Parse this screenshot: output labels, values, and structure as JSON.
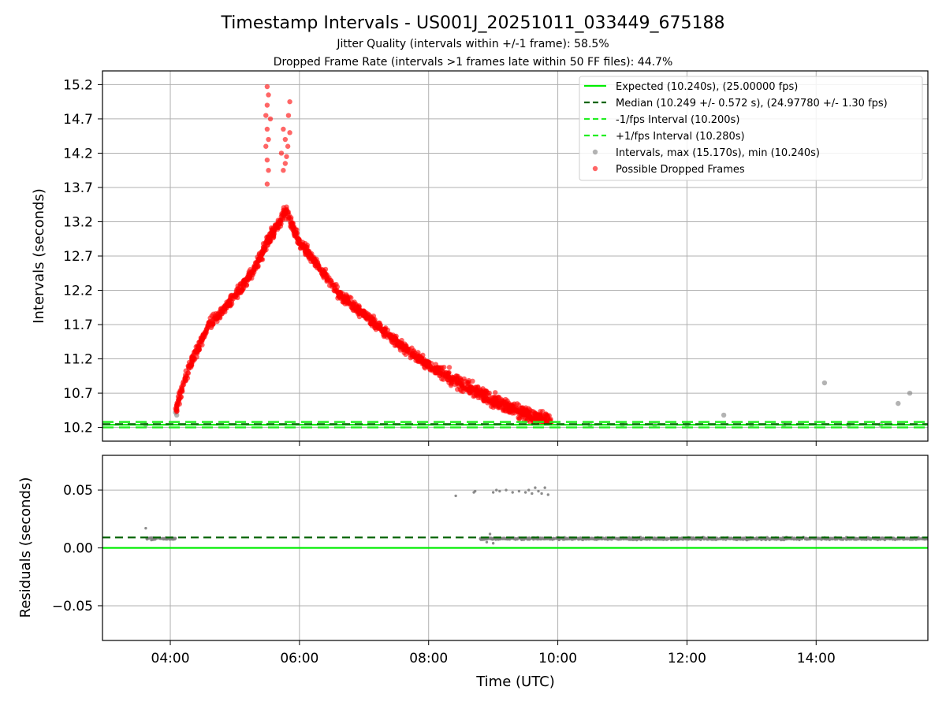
{
  "chart_data": [
    {
      "type": "scatter",
      "title": "Timestamp Intervals - US001J_20251011_033449_675188",
      "subtitles": [
        "Jitter Quality (intervals within +/-1 frame): 58.5%",
        "Dropped Frame Rate (intervals >1 frames late within 50 FF files): 44.7%"
      ],
      "xlabel": "",
      "ylabel": "Intervals (seconds)",
      "x_unit": "hours (UTC)",
      "xlim": [
        2.95,
        15.73
      ],
      "ylim": [
        10.0,
        15.4
      ],
      "yticks": [
        10.2,
        10.7,
        11.2,
        11.7,
        12.2,
        12.7,
        13.2,
        13.7,
        14.2,
        14.7,
        15.2
      ],
      "yticklabels": [
        "10.2",
        "10.7",
        "11.2",
        "11.7",
        "12.2",
        "12.7",
        "13.2",
        "13.7",
        "14.2",
        "14.7",
        "15.2"
      ],
      "xticks": [
        4,
        6,
        8,
        10,
        12,
        14
      ],
      "grid": true,
      "legend_position": "top-right",
      "colors": {
        "expected": "#00ee00",
        "median": "#006400",
        "band": "#22ee22",
        "intervals": "#808080",
        "dropped": "#ff0000"
      },
      "legend": [
        {
          "label": "Expected (10.240s), (25.00000 fps)",
          "style": "solid-line",
          "color": "#00ee00"
        },
        {
          "label": "Median (10.249 +/- 0.572 s), (24.97780 +/- 1.30 fps)",
          "style": "dashed-line",
          "color": "#006400"
        },
        {
          "label": "-1/fps Interval (10.200s)",
          "style": "dashed-line",
          "color": "#22ee22"
        },
        {
          "label": "+1/fps Interval (10.280s)",
          "style": "dashed-line",
          "color": "#22ee22"
        },
        {
          "label": "Intervals, max (15.170s), min (10.240s)",
          "style": "marker",
          "color": "#808080"
        },
        {
          "label": "Possible Dropped Frames",
          "style": "marker",
          "color": "#ff0000"
        }
      ],
      "reference_lines": {
        "expected": 10.24,
        "median": 10.249,
        "minus_one_fps": 10.2,
        "plus_one_fps": 10.28
      },
      "series": [
        {
          "name": "Intervals, max (15.170s), min (10.240s)",
          "color": "#808080",
          "points": [
            [
              3.62,
              10.24
            ],
            [
              4.08,
              10.42
            ],
            [
              4.1,
              10.38
            ],
            [
              12.57,
              10.38
            ],
            [
              14.13,
              10.85
            ],
            [
              15.27,
              10.55
            ],
            [
              15.45,
              10.7
            ],
            [
              10.5,
              10.24
            ],
            [
              11.0,
              10.24
            ],
            [
              11.5,
              10.24
            ],
            [
              12.0,
              10.24
            ],
            [
              13.0,
              10.24
            ],
            [
              13.5,
              10.24
            ],
            [
              14.5,
              10.24
            ],
            [
              15.0,
              10.24
            ]
          ]
        },
        {
          "name": "Possible Dropped Frames",
          "color": "#ff0000",
          "trend": [
            [
              4.08,
              10.45
            ],
            [
              4.3,
              11.1
            ],
            [
              4.6,
              11.7
            ],
            [
              5.0,
              12.1
            ],
            [
              5.3,
              12.5
            ],
            [
              5.55,
              13.0
            ],
            [
              5.8,
              13.35
            ],
            [
              6.0,
              12.9
            ],
            [
              6.3,
              12.55
            ],
            [
              6.6,
              12.15
            ],
            [
              7.0,
              11.85
            ],
            [
              7.5,
              11.45
            ],
            [
              8.0,
              11.1
            ],
            [
              8.5,
              10.85
            ],
            [
              9.0,
              10.6
            ],
            [
              9.5,
              10.4
            ],
            [
              9.9,
              10.28
            ]
          ],
          "peak_points": [
            [
              5.5,
              15.17
            ],
            [
              5.52,
              15.05
            ],
            [
              5.5,
              14.9
            ],
            [
              5.48,
              14.75
            ],
            [
              5.55,
              14.7
            ],
            [
              5.5,
              14.55
            ],
            [
              5.52,
              14.4
            ],
            [
              5.48,
              14.3
            ],
            [
              5.5,
              14.1
            ],
            [
              5.52,
              13.95
            ],
            [
              5.5,
              13.75
            ],
            [
              5.75,
              14.55
            ],
            [
              5.78,
              14.4
            ],
            [
              5.72,
              14.2
            ],
            [
              5.8,
              14.15
            ],
            [
              5.75,
              13.95
            ],
            [
              5.85,
              14.95
            ],
            [
              5.83,
              14.75
            ],
            [
              5.85,
              14.5
            ],
            [
              5.82,
              14.3
            ],
            [
              5.78,
              14.05
            ]
          ]
        }
      ]
    },
    {
      "type": "scatter",
      "title": "",
      "xlabel": "Time (UTC)",
      "ylabel": "Residuals (seconds)",
      "x_unit": "hours (UTC)",
      "xlim": [
        2.95,
        15.73
      ],
      "ylim": [
        -0.08,
        0.08
      ],
      "yticks": [
        -0.05,
        0.0,
        0.05
      ],
      "yticklabels": [
        "−0.05",
        "0.00",
        "0.05"
      ],
      "xticks": [
        4,
        6,
        8,
        10,
        12,
        14
      ],
      "xticklabels": [
        "04:00",
        "06:00",
        "08:00",
        "10:00",
        "12:00",
        "14:00"
      ],
      "grid": true,
      "reference_lines": {
        "expected": 0.0,
        "median": 0.009
      },
      "series": [
        {
          "color": "#808080",
          "points": [
            [
              3.62,
              0.017
            ],
            [
              8.42,
              0.045
            ],
            [
              8.7,
              0.048
            ],
            [
              8.72,
              0.049
            ],
            [
              9.0,
              0.048
            ],
            [
              9.05,
              0.05
            ],
            [
              9.1,
              0.049
            ],
            [
              9.2,
              0.05
            ],
            [
              9.3,
              0.048
            ],
            [
              9.4,
              0.049
            ],
            [
              9.5,
              0.048
            ],
            [
              9.55,
              0.05
            ],
            [
              9.6,
              0.047
            ],
            [
              9.65,
              0.052
            ],
            [
              9.7,
              0.049
            ],
            [
              9.75,
              0.047
            ],
            [
              9.8,
              0.052
            ],
            [
              9.85,
              0.046
            ],
            [
              8.9,
              0.005
            ],
            [
              8.95,
              0.012
            ],
            [
              9.0,
              0.004
            ]
          ],
          "clusters": [
            {
              "x_range": [
                3.62,
                4.08
              ],
              "y": 0.008
            },
            {
              "x_range": [
                8.8,
                15.73
              ],
              "y": 0.008
            }
          ]
        }
      ]
    }
  ]
}
